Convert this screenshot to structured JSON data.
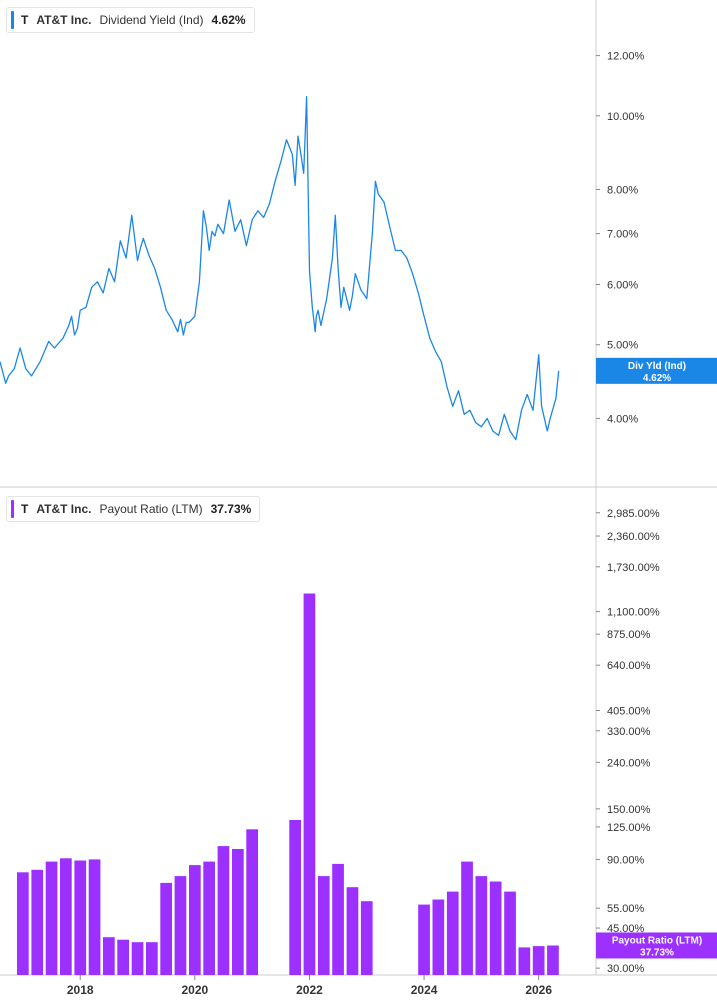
{
  "legends": {
    "top": {
      "ticker": "T",
      "company": "AT&T Inc.",
      "metric": "Dividend Yield (Ind)",
      "value": "4.62%"
    },
    "bottom": {
      "ticker": "T",
      "company": "AT&T Inc.",
      "metric": "Payout Ratio (LTM)",
      "value": "37.73%"
    }
  },
  "colors": {
    "yield_line": "#1a87e6",
    "payout_bar": "#9b30ff",
    "axis": "#cccccc"
  },
  "chart_data": [
    {
      "type": "line",
      "scale": "log",
      "legend_position": "top-left",
      "grid": false,
      "y_ticks": [
        4,
        5,
        6,
        7,
        8,
        10,
        12
      ],
      "y_tick_labels": [
        "4.00%",
        "5.00%",
        "6.00%",
        "7.00%",
        "8.00%",
        "10.00%",
        "12.00%"
      ],
      "ylim": [
        3.25,
        14.2
      ],
      "x_ticks": [
        2018,
        2020,
        2022,
        2024,
        2026
      ],
      "x_tick_labels": [
        "2018",
        "2020",
        "2022",
        "2024",
        "2026"
      ],
      "xlim": [
        2016.6,
        2027.0
      ],
      "current_flag": {
        "line1": "Div Yld (Ind)",
        "line2": "4.62%",
        "value": 4.62
      },
      "series": [
        {
          "name": "Dividend Yield (Ind)",
          "x": [
            2016.6,
            2016.7,
            2016.75,
            2016.85,
            2016.95,
            2017.05,
            2017.15,
            2017.3,
            2017.45,
            2017.55,
            2017.7,
            2017.8,
            2017.85,
            2017.9,
            2017.95,
            2018.0,
            2018.1,
            2018.2,
            2018.3,
            2018.4,
            2018.5,
            2018.6,
            2018.7,
            2018.8,
            2018.9,
            2018.95,
            2019.0,
            2019.05,
            2019.1,
            2019.2,
            2019.3,
            2019.4,
            2019.5,
            2019.6,
            2019.7,
            2019.75,
            2019.8,
            2019.85,
            2019.9,
            2020.0,
            2020.08,
            2020.15,
            2020.2,
            2020.25,
            2020.3,
            2020.35,
            2020.4,
            2020.5,
            2020.6,
            2020.7,
            2020.8,
            2020.9,
            2021.0,
            2021.1,
            2021.2,
            2021.3,
            2021.4,
            2021.5,
            2021.6,
            2021.7,
            2021.75,
            2021.8,
            2021.85,
            2021.9,
            2021.95,
            2022.0,
            2022.05,
            2022.1,
            2022.12,
            2022.15,
            2022.2,
            2022.3,
            2022.4,
            2022.45,
            2022.5,
            2022.55,
            2022.6,
            2022.7,
            2022.75,
            2022.8,
            2022.9,
            2023.0,
            2023.1,
            2023.15,
            2023.2,
            2023.3,
            2023.4,
            2023.5,
            2023.6,
            2023.7,
            2023.8,
            2023.9,
            2024.0,
            2024.1,
            2024.2,
            2024.3,
            2024.4,
            2024.5,
            2024.6,
            2024.7,
            2024.8,
            2024.9,
            2025.0,
            2025.1,
            2025.2,
            2025.3,
            2025.4,
            2025.5,
            2025.6,
            2025.7,
            2025.8,
            2025.9,
            2026.0,
            2026.05,
            2026.15,
            2026.2,
            2026.3,
            2026.35
          ],
          "values": [
            4.75,
            4.45,
            4.55,
            4.65,
            4.95,
            4.65,
            4.55,
            4.75,
            5.05,
            4.95,
            5.1,
            5.3,
            5.45,
            5.15,
            5.25,
            5.55,
            5.6,
            5.95,
            6.05,
            5.85,
            6.3,
            6.05,
            6.85,
            6.5,
            7.4,
            6.9,
            6.45,
            6.7,
            6.9,
            6.55,
            6.3,
            5.95,
            5.55,
            5.4,
            5.2,
            5.4,
            5.15,
            5.35,
            5.35,
            5.45,
            6.05,
            7.5,
            7.15,
            6.65,
            7.05,
            6.95,
            7.2,
            7.0,
            7.75,
            7.05,
            7.3,
            6.75,
            7.3,
            7.5,
            7.35,
            7.65,
            8.2,
            8.7,
            9.3,
            8.9,
            8.1,
            9.4,
            8.9,
            8.4,
            10.6,
            6.25,
            5.6,
            5.2,
            5.45,
            5.55,
            5.3,
            5.75,
            6.5,
            7.4,
            6.3,
            5.6,
            5.95,
            5.55,
            5.8,
            6.2,
            5.9,
            5.75,
            7.05,
            8.2,
            7.9,
            7.7,
            7.15,
            6.65,
            6.65,
            6.5,
            6.2,
            5.85,
            5.45,
            5.1,
            4.9,
            4.75,
            4.4,
            4.15,
            4.35,
            4.05,
            4.1,
            3.95,
            3.9,
            4.0,
            3.85,
            3.8,
            4.05,
            3.85,
            3.75,
            4.1,
            4.3,
            4.1,
            4.85,
            4.15,
            3.85,
            4.0,
            4.25,
            4.62
          ]
        }
      ]
    },
    {
      "type": "bar",
      "scale": "log",
      "legend_position": "top-left",
      "grid": false,
      "y_ticks": [
        30,
        45,
        55,
        90,
        125,
        150,
        240,
        330,
        405,
        640,
        875,
        1100,
        1730,
        2360,
        2985
      ],
      "y_tick_labels": [
        "30.00%",
        "45.00%",
        "55.00%",
        "90.00%",
        "125.00%",
        "150.00%",
        "240.00%",
        "330.00%",
        "405.00%",
        "640.00%",
        "875.00%",
        "1,100.00%",
        "1,730.00%",
        "2,360.00%",
        "2,985.00%"
      ],
      "ylim": [
        28,
        3500
      ],
      "x_ticks": [
        2018,
        2020,
        2022,
        2024,
        2026
      ],
      "x_tick_labels": [
        "2018",
        "2020",
        "2022",
        "2024",
        "2026"
      ],
      "xlim": [
        2016.6,
        2027.0
      ],
      "current_flag": {
        "line1": "Payout Ratio (LTM)",
        "line2": "37.73%",
        "value": 37.73
      },
      "series": [
        {
          "name": "Payout Ratio (LTM)",
          "x": [
            2016.75,
            2017.0,
            2017.25,
            2017.5,
            2017.75,
            2018.0,
            2018.25,
            2018.5,
            2018.75,
            2019.0,
            2019.25,
            2019.5,
            2019.75,
            2020.0,
            2020.25,
            2020.5,
            2020.75,
            2021.0,
            2021.75,
            2022.0,
            2022.25,
            2022.5,
            2022.75,
            2023.0,
            2024.0,
            2024.25,
            2024.5,
            2024.75,
            2025.0,
            2025.25,
            2025.5,
            2025.75,
            2026.0,
            2026.25
          ],
          "values": [
            0,
            79,
            81,
            88,
            91,
            89,
            90,
            41,
            40,
            39,
            39,
            71,
            76,
            85,
            88,
            103,
            100,
            122,
            134,
            1320,
            76,
            86,
            68,
            59,
            57,
            60,
            65,
            88,
            76,
            72,
            65,
            37,
            37.5,
            37.73
          ]
        }
      ]
    }
  ]
}
